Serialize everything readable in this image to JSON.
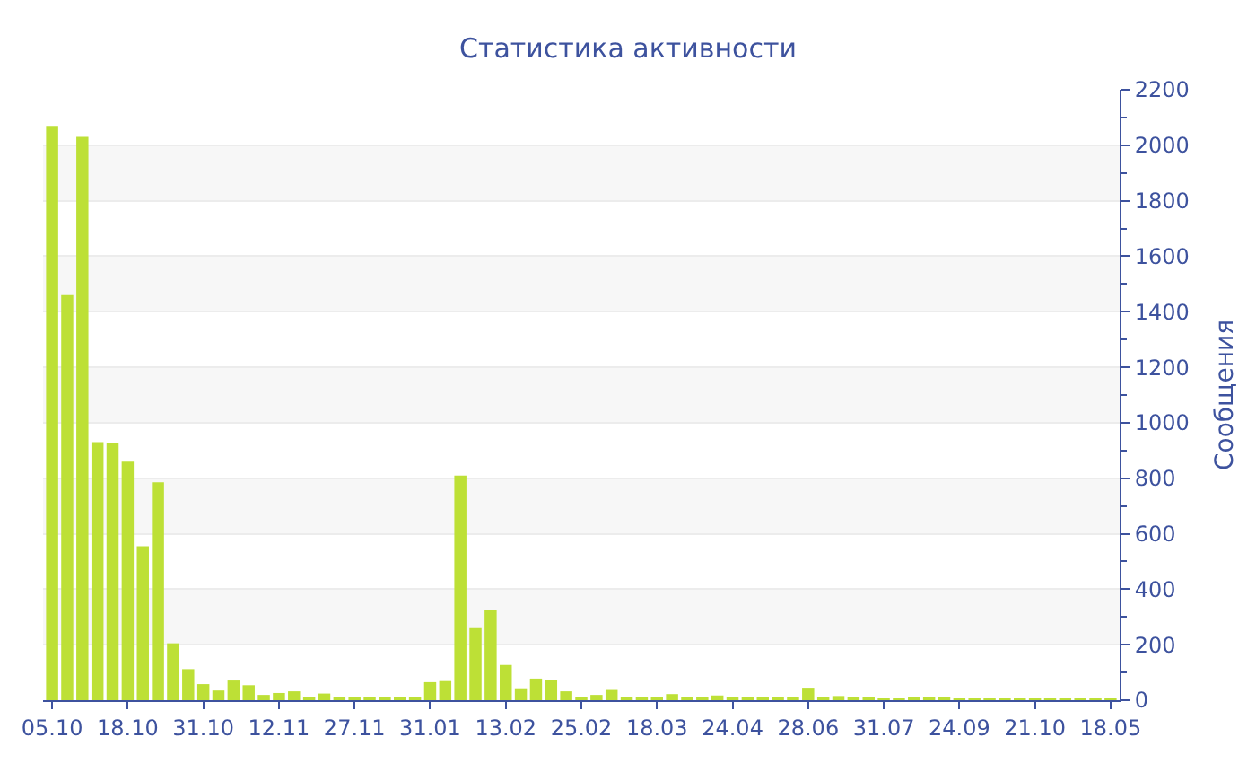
{
  "chart_data": {
    "type": "bar",
    "title": "Статистика активности",
    "ylabel": "Сообщения",
    "categories": [
      "05.10",
      null,
      null,
      null,
      null,
      "18.10",
      null,
      null,
      null,
      null,
      "31.10",
      null,
      null,
      null,
      null,
      "12.11",
      null,
      null,
      null,
      null,
      "27.11",
      null,
      null,
      null,
      null,
      "31.01",
      null,
      null,
      null,
      null,
      "13.02",
      null,
      null,
      null,
      null,
      "25.02",
      null,
      null,
      null,
      null,
      "18.03",
      null,
      null,
      null,
      null,
      "24.04",
      null,
      null,
      null,
      null,
      "28.06",
      null,
      null,
      null,
      null,
      "31.07",
      null,
      null,
      null,
      null,
      "24.09",
      null,
      null,
      null,
      null,
      "21.10",
      null,
      null,
      null,
      null,
      "18.05"
    ],
    "values": [
      2070,
      1460,
      2030,
      930,
      925,
      860,
      555,
      785,
      205,
      112,
      58,
      35,
      71,
      54,
      19,
      26,
      32,
      13,
      24,
      11,
      9,
      13,
      11,
      11,
      9,
      65,
      69,
      810,
      260,
      325,
      127,
      43,
      78,
      73,
      32,
      11,
      19,
      37,
      9,
      9,
      9,
      22,
      13,
      11,
      17,
      13,
      9,
      9,
      9,
      9,
      45,
      11,
      15,
      11,
      13,
      6,
      6,
      9,
      9,
      13,
      6,
      6,
      6,
      6,
      6,
      6,
      6,
      6,
      6,
      6,
      6
    ],
    "color": "#bde036",
    "ylim": [
      0,
      2200
    ],
    "yticks": [
      0,
      200,
      400,
      600,
      800,
      1000,
      1200,
      1400,
      1600,
      1800,
      2000,
      2200
    ],
    "grid": "y"
  }
}
